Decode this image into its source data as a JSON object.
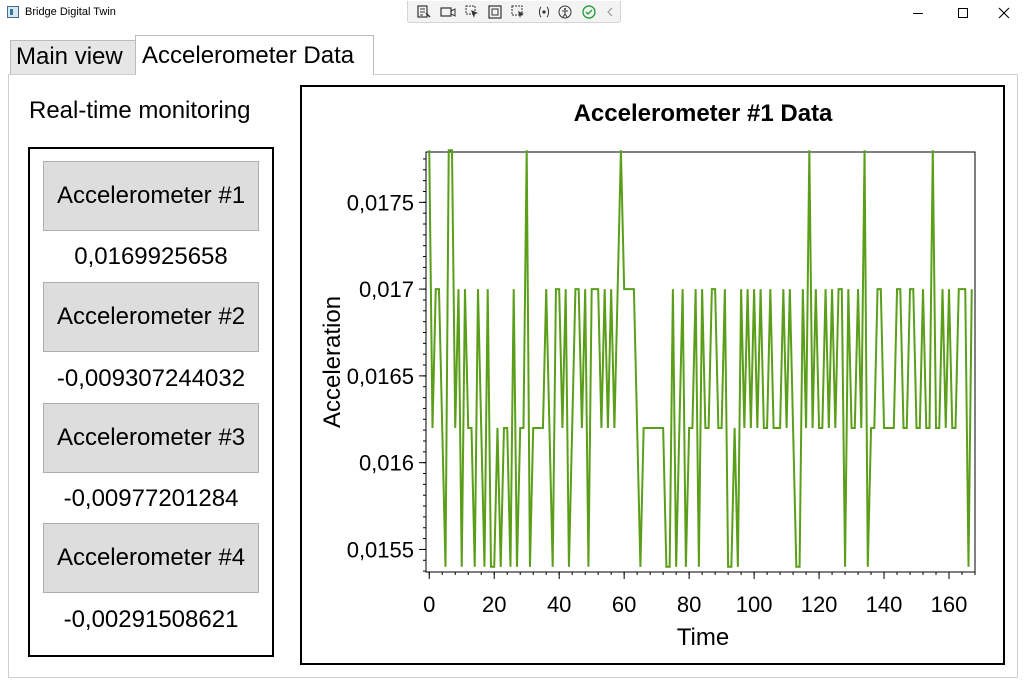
{
  "window": {
    "title": "Bridge Digital Twin",
    "icons": [
      "app-icon",
      "minimize-icon",
      "maximize-icon",
      "close-icon"
    ]
  },
  "devtools": {
    "icons": [
      "live-visual-tree-icon",
      "video-camera-icon",
      "select-element-icon",
      "display-layout-adorners-icon",
      "track-focus-icon",
      "binding-failures-icon",
      "accessibility-icon",
      "hot-reload-check-icon",
      "collapse-chevron-icon"
    ],
    "colors": {
      "check": "#2ea043"
    }
  },
  "tabs": [
    {
      "label": "Main view",
      "selected": false
    },
    {
      "label": "Accelerometer Data",
      "selected": true
    }
  ],
  "left_panel": {
    "title": "Real-time monitoring",
    "sensors": [
      {
        "label": "Accelerometer #1",
        "value": "0,0169925658"
      },
      {
        "label": "Accelerometer #2",
        "value": "-0,009307244032"
      },
      {
        "label": "Accelerometer #3",
        "value": "-0,00977201284"
      },
      {
        "label": "Accelerometer #4",
        "value": "-0,00291508621"
      }
    ]
  },
  "chart_data": {
    "type": "line",
    "title": "Accelerometer #1 Data",
    "xlabel": "Time",
    "ylabel": "Acceleration",
    "xlim": [
      -1,
      168
    ],
    "ylim": [
      0.01537,
      0.01779
    ],
    "xticks": [
      0,
      20,
      40,
      60,
      80,
      100,
      120,
      140,
      160
    ],
    "xtick_labels": [
      "0",
      "20",
      "40",
      "60",
      "80",
      "100",
      "120",
      "140",
      "160"
    ],
    "yticks": [
      0.0155,
      0.016,
      0.0165,
      0.017,
      0.0175
    ],
    "ytick_labels": [
      "0,0155",
      "0,016",
      "0,0165",
      "0,017",
      "0,0175"
    ],
    "grid": false,
    "line_color": "#5a9e1a",
    "series": [
      {
        "x": [
          0,
          1,
          2,
          3,
          4,
          5,
          6,
          7,
          8,
          9,
          10,
          11,
          12,
          13,
          14,
          15,
          16,
          17,
          18,
          19,
          20,
          21,
          22,
          23,
          24,
          25,
          26,
          27,
          28,
          29,
          30,
          31,
          32,
          33,
          34,
          35,
          36,
          37,
          38,
          39,
          40,
          41,
          42,
          43,
          44,
          45,
          46,
          47,
          48,
          49,
          50,
          51,
          52,
          53,
          54,
          55,
          56,
          57,
          58,
          59,
          60,
          61,
          62,
          63,
          64,
          65,
          66,
          67,
          68,
          69,
          70,
          71,
          72,
          73,
          74,
          75,
          76,
          77,
          78,
          79,
          80,
          81,
          82,
          83,
          84,
          85,
          86,
          87,
          88,
          89,
          90,
          91,
          92,
          93,
          94,
          95,
          96,
          97,
          98,
          99,
          100,
          101,
          102,
          103,
          104,
          105,
          106,
          107,
          108,
          109,
          110,
          111,
          112,
          113,
          114,
          115,
          116,
          117,
          118,
          119,
          120,
          121,
          122,
          123,
          124,
          125,
          126,
          127,
          128,
          129,
          130,
          131,
          132,
          133,
          134,
          135,
          136,
          137,
          138,
          139,
          140,
          141,
          142,
          143,
          144,
          145,
          146,
          147,
          148,
          149,
          150,
          151,
          152,
          153,
          154,
          155,
          156,
          157,
          158,
          159,
          160,
          161,
          162,
          163,
          164,
          165,
          166,
          167
        ],
        "values": [
          0.0178,
          0.0162,
          0.017,
          0.017,
          0.0162,
          0.0154,
          0.0178,
          0.0178,
          0.0162,
          0.017,
          0.0154,
          0.017,
          0.0162,
          0.0162,
          0.0154,
          0.017,
          0.0162,
          0.0154,
          0.017,
          0.0154,
          0.0154,
          0.0162,
          0.0154,
          0.0162,
          0.0162,
          0.0154,
          0.017,
          0.0154,
          0.0162,
          0.0162,
          0.0178,
          0.0154,
          0.0162,
          0.0162,
          0.0162,
          0.0162,
          0.017,
          0.0162,
          0.0154,
          0.017,
          0.017,
          0.0162,
          0.017,
          0.0154,
          0.0162,
          0.017,
          0.017,
          0.0162,
          0.017,
          0.0154,
          0.017,
          0.017,
          0.017,
          0.0162,
          0.017,
          0.0162,
          0.017,
          0.0162,
          0.017,
          0.0178,
          0.017,
          0.017,
          0.017,
          0.017,
          0.0162,
          0.0154,
          0.0162,
          0.0162,
          0.0162,
          0.0162,
          0.0162,
          0.0162,
          0.0162,
          0.0154,
          0.0154,
          0.017,
          0.0154,
          0.0162,
          0.017,
          0.0154,
          0.0162,
          0.0162,
          0.017,
          0.0154,
          0.017,
          0.0162,
          0.0162,
          0.017,
          0.017,
          0.0162,
          0.0162,
          0.017,
          0.0154,
          0.0154,
          0.0162,
          0.0154,
          0.017,
          0.0162,
          0.017,
          0.0162,
          0.017,
          0.0162,
          0.017,
          0.0162,
          0.0162,
          0.017,
          0.0162,
          0.0162,
          0.0162,
          0.017,
          0.0162,
          0.017,
          0.0162,
          0.0154,
          0.0154,
          0.017,
          0.0162,
          0.0178,
          0.0162,
          0.017,
          0.0162,
          0.0162,
          0.017,
          0.0162,
          0.017,
          0.0162,
          0.017,
          0.017,
          0.0154,
          0.017,
          0.0162,
          0.0162,
          0.017,
          0.0162,
          0.0178,
          0.0154,
          0.0162,
          0.0162,
          0.017,
          0.017,
          0.0162,
          0.0162,
          0.0162,
          0.0162,
          0.017,
          0.017,
          0.0162,
          0.0162,
          0.017,
          0.017,
          0.0162,
          0.0162,
          0.017,
          0.0162,
          0.0162,
          0.0178,
          0.0162,
          0.0162,
          0.017,
          0.0162,
          0.017,
          0.0162,
          0.0162,
          0.017,
          0.017,
          0.017,
          0.0154,
          0.017
        ]
      }
    ]
  }
}
